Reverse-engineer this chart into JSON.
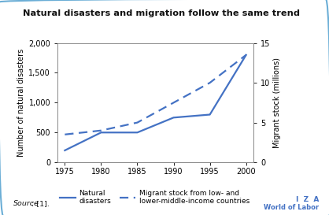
{
  "title": "Natural disasters and migration follow the same trend",
  "years": [
    1975,
    1980,
    1985,
    1990,
    1995,
    2000
  ],
  "natural_disasters": [
    200,
    500,
    500,
    750,
    800,
    1800
  ],
  "migrant_stock": [
    3.5,
    4.0,
    5.0,
    7.5,
    10.0,
    13.5
  ],
  "line_color": "#4472C4",
  "ylabel_left": "Number of natural disasters",
  "ylabel_right": "Migrant stock (millions)",
  "xlim": [
    1974,
    2001
  ],
  "ylim_left": [
    0,
    2000
  ],
  "ylim_right": [
    0,
    15
  ],
  "yticks_left": [
    0,
    500,
    1000,
    1500,
    2000
  ],
  "yticks_right": [
    0,
    5,
    10,
    15
  ],
  "ytick_labels_left": [
    "0",
    "500",
    "1,000",
    "1,500",
    "2,000"
  ],
  "ytick_labels_right": [
    "0",
    "5",
    "10",
    "15"
  ],
  "xticks": [
    1975,
    1980,
    1985,
    1990,
    1995,
    2000
  ],
  "legend_solid": "Natural\ndisasters",
  "legend_dashed": "Migrant stock from low- and\nlower-middle-income countries",
  "source_italic": "Source",
  "source_normal": ": [1].",
  "bg_color": "#ffffff",
  "border_color": "#6baed6",
  "iza_line1": "I  Z  A",
  "iza_line2": "World of Labor"
}
